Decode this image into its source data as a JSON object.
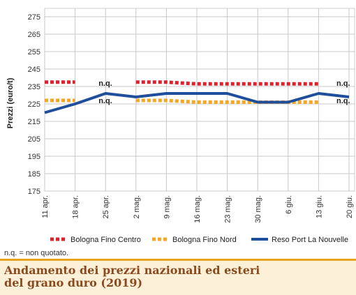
{
  "chart_data": {
    "type": "line",
    "title": "",
    "ylabel": "Prezzi (euro/t)",
    "xlabel": "",
    "ylim": [
      175,
      275
    ],
    "yticks": [
      175,
      185,
      195,
      205,
      215,
      225,
      235,
      245,
      255,
      265,
      275
    ],
    "categories": [
      "11 apr.",
      "18 apr.",
      "25 apr.",
      "2 mag.",
      "9 mag.",
      "16 mag.",
      "23 mag.",
      "30 mag.",
      "6 giu.",
      "13 giu.",
      "20 giu."
    ],
    "grid": true,
    "legend_position": "bottom",
    "series": [
      {
        "name": "Bologna Fino Centro",
        "style": "dotted",
        "color": "#e0202a",
        "values": [
          237.5,
          237.5,
          null,
          237.5,
          237.5,
          236.5,
          236.5,
          236.5,
          236.5,
          236.5,
          null
        ]
      },
      {
        "name": "Bologna Fino Nord",
        "style": "dotted",
        "color": "#f5a623",
        "values": [
          227,
          227,
          null,
          227,
          227,
          226,
          226,
          226,
          226,
          226,
          null
        ]
      },
      {
        "name": "Reso Port La Nouvelle",
        "style": "solid",
        "color": "#1f4e9c",
        "values": [
          220,
          225,
          231,
          229,
          231,
          231,
          231,
          226,
          226,
          231,
          229
        ]
      }
    ],
    "annotations": [
      {
        "text": "n.q.",
        "x": "25 apr.",
        "y": 237
      },
      {
        "text": "n.q.",
        "x": "25 apr.",
        "y": 227
      },
      {
        "text": "n.q.",
        "x": "20 giu.",
        "y": 237
      },
      {
        "text": "n.q.",
        "x": "20 giu.",
        "y": 227
      }
    ]
  },
  "note": "n.q. = non quotato.",
  "footer": {
    "line1": "Andamento dei prezzi nazionali ed esteri",
    "line2": "del grano duro (2019)"
  }
}
